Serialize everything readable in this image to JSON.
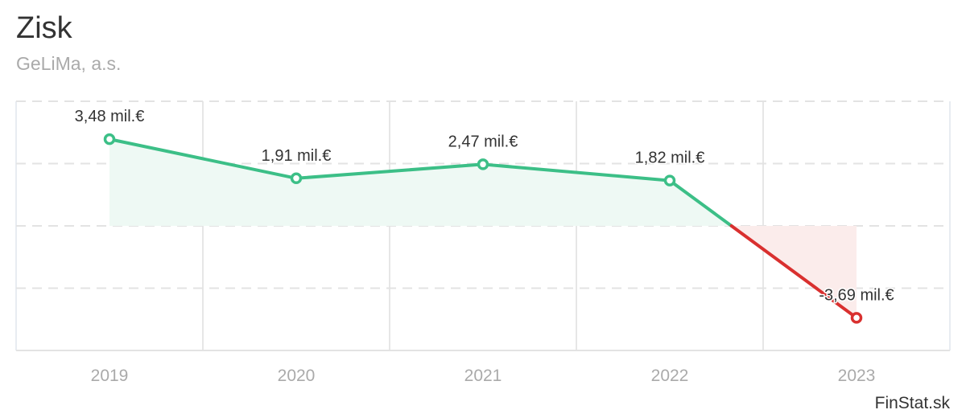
{
  "header": {
    "title": "Zisk",
    "subtitle": "GeLiMa, a.s."
  },
  "credit": "FinStat.sk",
  "chart_data": {
    "type": "line",
    "title": "Zisk",
    "subtitle": "GeLiMa, a.s.",
    "categories": [
      "2019",
      "2020",
      "2021",
      "2022",
      "2023"
    ],
    "values": [
      3.48,
      1.91,
      2.47,
      1.82,
      -3.69
    ],
    "data_labels": [
      "3,48 mil.€",
      "1,91 mil.€",
      "2,47 mil.€",
      "1,82 mil.€",
      "-3,69 mil.€"
    ],
    "unit": "mil.€",
    "ylim": [
      -5,
      5
    ],
    "ygrid": [
      5,
      2.5,
      0,
      -2.5
    ],
    "xlabel": "",
    "ylabel": "",
    "grid": true,
    "colors": {
      "positive": "#3cbf87",
      "negative": "#d9302f",
      "positive_fill": "#eef9f4",
      "negative_fill": "#fbeceb",
      "grid": "#e3e3e3"
    }
  }
}
